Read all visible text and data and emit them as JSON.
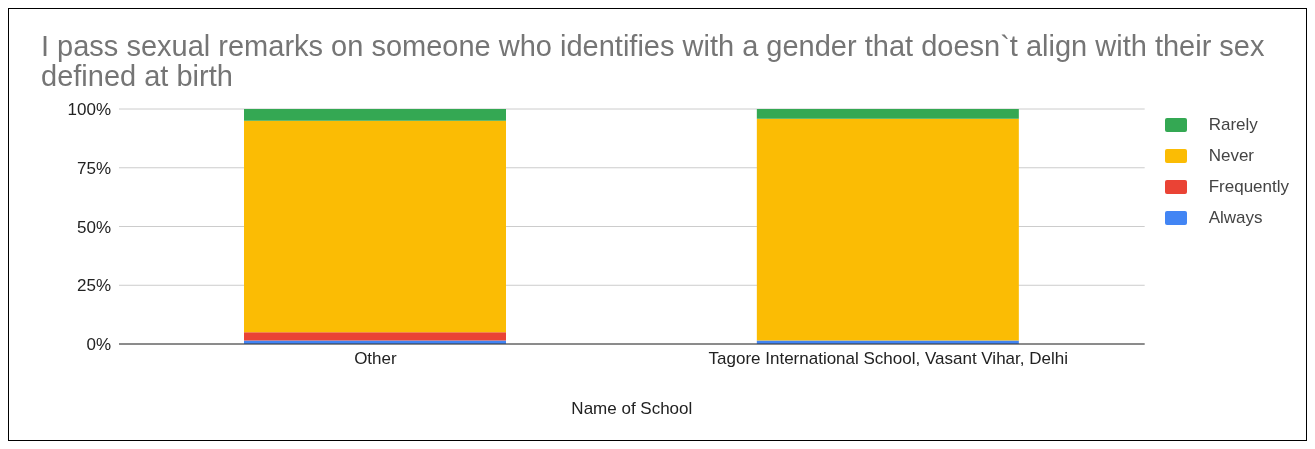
{
  "chart_data": {
    "type": "bar",
    "title": "I pass sexual remarks on someone who identifies with a gender that doesn`t align with their sex defined at birth",
    "xlabel": "Name of School",
    "categories": [
      "Other",
      "Tagore International School, Vasant Vihar, Delhi"
    ],
    "stacked": true,
    "ylim": [
      0,
      100
    ],
    "yticks": [
      {
        "value": 0,
        "label": "0%"
      },
      {
        "value": 25,
        "label": "25%"
      },
      {
        "value": 50,
        "label": "50%"
      },
      {
        "value": 75,
        "label": "75%"
      },
      {
        "value": 100,
        "label": "100%"
      }
    ],
    "grid": "y",
    "legend": "right",
    "series": [
      {
        "name": "Always",
        "color": "#4285f4",
        "values": [
          1.5,
          1.5
        ]
      },
      {
        "name": "Frequently",
        "color": "#ea4335",
        "values": [
          3.5,
          0
        ]
      },
      {
        "name": "Never",
        "color": "#fbbc04",
        "values": [
          90,
          94.3
        ]
      },
      {
        "name": "Rarely",
        "color": "#34a853",
        "values": [
          5,
          4.2
        ]
      }
    ]
  }
}
